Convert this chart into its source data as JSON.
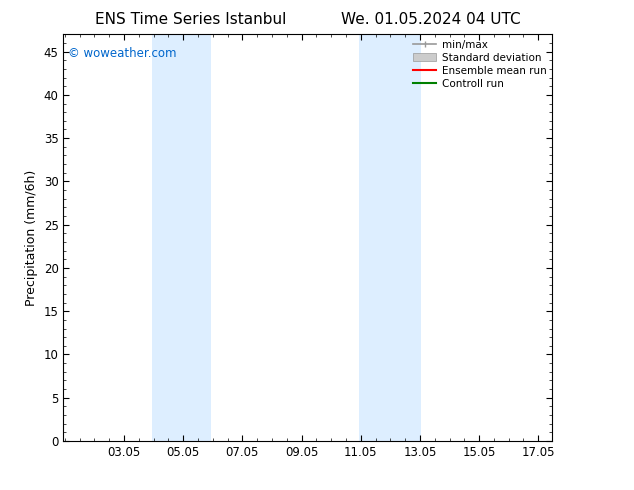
{
  "title_left": "ENS Time Series Istanbul",
  "title_right": "We. 01.05.2024 04 UTC",
  "ylabel": "Precipitation (mm/6h)",
  "watermark": "© woweather.com",
  "watermark_color": "#0066cc",
  "xlim_start": 1.0,
  "xlim_end": 17.5,
  "ylim_min": 0,
  "ylim_max": 47,
  "yticks": [
    0,
    5,
    10,
    15,
    20,
    25,
    30,
    35,
    40,
    45
  ],
  "xticks": [
    3.05,
    5.05,
    7.05,
    9.05,
    11.05,
    13.05,
    15.05,
    17.05
  ],
  "xtick_labels": [
    "03.05",
    "05.05",
    "07.05",
    "09.05",
    "11.05",
    "13.05",
    "15.05",
    "17.05"
  ],
  "shaded_bands": [
    {
      "x_start": 4.0,
      "x_end": 5.3
    },
    {
      "x_start": 5.3,
      "x_end": 6.0
    },
    {
      "x_start": 11.0,
      "x_end": 12.0
    },
    {
      "x_start": 12.0,
      "x_end": 13.1
    }
  ],
  "band_color": "#ddeeff",
  "legend_labels": [
    "min/max",
    "Standard deviation",
    "Ensemble mean run",
    "Controll run"
  ],
  "background_color": "#ffffff",
  "plot_bg_color": "#ffffff",
  "tick_label_fontsize": 8.5,
  "axis_label_fontsize": 9,
  "title_fontsize": 11
}
